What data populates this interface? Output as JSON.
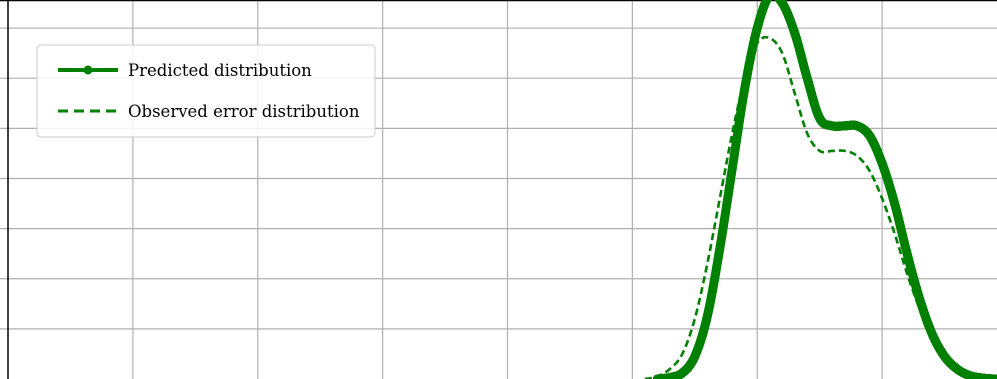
{
  "chart_data": {
    "type": "line",
    "title": "",
    "xlabel": "",
    "ylabel": "",
    "xlim": [
      -5,
      3
    ],
    "ylim": [
      0,
      7.6
    ],
    "grid": true,
    "x_gridlines": [
      -4,
      -3,
      -2,
      -1,
      0,
      1,
      2
    ],
    "y_gridlines": [
      1,
      2,
      3,
      4,
      5,
      6,
      7
    ],
    "legend": {
      "position": "upper-left",
      "entries": [
        "Predicted distribution",
        "Observed error distribution"
      ]
    },
    "series": [
      {
        "name": "Predicted distribution",
        "style": "solid-line-dense-markers",
        "color": "#008000",
        "x": [
          0.2,
          0.3,
          0.4,
          0.5,
          0.6,
          0.7,
          0.8,
          0.9,
          1.0,
          1.1,
          1.2,
          1.3,
          1.4,
          1.5,
          1.6,
          1.7,
          1.8,
          1.9,
          2.0,
          2.1,
          2.2,
          2.3,
          2.4,
          2.5,
          2.6,
          2.7,
          2.8,
          2.9,
          3.0
        ],
        "y": [
          0.0,
          0.03,
          0.12,
          0.45,
          1.25,
          2.6,
          4.2,
          5.8,
          7.0,
          7.65,
          7.5,
          6.9,
          6.0,
          5.2,
          5.05,
          5.05,
          5.05,
          4.85,
          4.3,
          3.5,
          2.5,
          1.6,
          0.9,
          0.45,
          0.2,
          0.07,
          0.02,
          0.0,
          0.0
        ]
      },
      {
        "name": "Observed error distribution",
        "style": "dashed",
        "color": "#008000",
        "x": [
          0.1,
          0.2,
          0.3,
          0.4,
          0.5,
          0.6,
          0.7,
          0.8,
          0.9,
          1.0,
          1.1,
          1.2,
          1.3,
          1.4,
          1.5,
          1.6,
          1.7,
          1.8,
          1.9,
          2.0,
          2.1,
          2.2,
          2.3,
          2.4,
          2.5,
          2.6,
          2.7,
          2.8,
          2.9,
          3.0
        ],
        "y": [
          0.0,
          0.05,
          0.2,
          0.5,
          1.2,
          2.3,
          3.6,
          4.9,
          6.0,
          6.7,
          6.8,
          6.5,
          5.7,
          4.9,
          4.55,
          4.55,
          4.55,
          4.45,
          4.15,
          3.6,
          2.9,
          2.1,
          1.4,
          0.8,
          0.4,
          0.15,
          0.05,
          0.0,
          0.0,
          0.0
        ]
      }
    ]
  }
}
